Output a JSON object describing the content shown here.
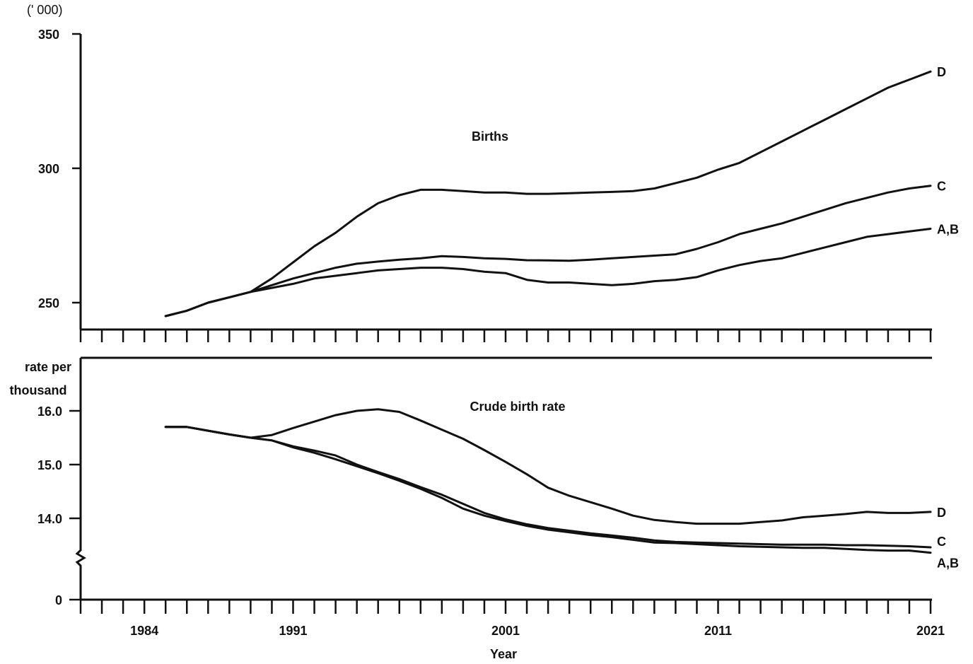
{
  "chart_data": [
    {
      "type": "line",
      "title": "Births",
      "ylabel": "(' 000)",
      "xlim": [
        1981,
        2021
      ],
      "ylim": [
        240,
        350
      ],
      "yticks": [
        250,
        300,
        350
      ],
      "series": [
        {
          "name": "D",
          "x": [
            1985,
            1986,
            1987,
            1988,
            1989,
            1990,
            1991,
            1992,
            1993,
            1994,
            1995,
            1996,
            1997,
            1998,
            1999,
            2000,
            2001,
            2002,
            2003,
            2004,
            2005,
            2006,
            2007,
            2008,
            2009,
            2010,
            2011,
            2012,
            2013,
            2014,
            2015,
            2016,
            2017,
            2018,
            2019,
            2020,
            2021
          ],
          "values": [
            245,
            247,
            250,
            252,
            254,
            259,
            265,
            271,
            276,
            282,
            287,
            290,
            292,
            292,
            291.5,
            291,
            291,
            290.5,
            290.5,
            290.7,
            291,
            291.2,
            291.5,
            292.5,
            294.5,
            296.5,
            299.5,
            302,
            306,
            310,
            314,
            318,
            322,
            326,
            330,
            333,
            336
          ]
        },
        {
          "name": "C",
          "x": [
            1985,
            1986,
            1987,
            1988,
            1989,
            1990,
            1991,
            1992,
            1993,
            1994,
            1995,
            1996,
            1997,
            1998,
            1999,
            2000,
            2001,
            2002,
            2003,
            2004,
            2005,
            2006,
            2007,
            2008,
            2009,
            2010,
            2011,
            2012,
            2013,
            2014,
            2015,
            2016,
            2017,
            2018,
            2019,
            2020,
            2021
          ],
          "values": [
            245,
            247,
            250,
            252,
            254,
            256.5,
            259,
            261,
            263,
            264.5,
            265.3,
            266,
            266.5,
            267.3,
            267,
            266.5,
            266.3,
            265.8,
            265.7,
            265.6,
            266,
            266.5,
            267,
            267.5,
            268,
            270,
            272.5,
            275.5,
            277.5,
            279.5,
            282,
            284.5,
            287,
            289,
            291,
            292.5,
            293.5
          ]
        },
        {
          "name": "A,B",
          "x": [
            1985,
            1986,
            1987,
            1988,
            1989,
            1990,
            1991,
            1992,
            1993,
            1994,
            1995,
            1996,
            1997,
            1998,
            1999,
            2000,
            2001,
            2002,
            2003,
            2004,
            2005,
            2006,
            2007,
            2008,
            2009,
            2010,
            2011,
            2012,
            2013,
            2014,
            2015,
            2016,
            2017,
            2018,
            2019,
            2020,
            2021
          ],
          "values": [
            245,
            247,
            250,
            252,
            254,
            255.5,
            257,
            259,
            260,
            261,
            262,
            262.5,
            263,
            263,
            262.5,
            261.5,
            261,
            258.5,
            257.5,
            257.5,
            257,
            256.5,
            257,
            258,
            258.5,
            259.5,
            262,
            264,
            265.5,
            266.5,
            268.5,
            270.5,
            272.5,
            274.5,
            275.5,
            276.5,
            277.5
          ]
        }
      ]
    },
    {
      "type": "line",
      "title": "Crude birth rate",
      "ylabel_lines": [
        "rate per",
        "thousand"
      ],
      "xlabel": "Year",
      "xlim": [
        1981,
        2021
      ],
      "ylim": [
        0,
        16.6
      ],
      "y_axis_break": true,
      "yticks": [
        0,
        14.0,
        15.0,
        16.0
      ],
      "ytick_labels": [
        "0",
        "14.0",
        "15.0",
        "16.0"
      ],
      "xtick_labels": [
        "1984",
        "1991",
        "2001",
        "2011",
        "2021"
      ],
      "series": [
        {
          "name": "D",
          "x": [
            1985,
            1986,
            1987,
            1988,
            1989,
            1990,
            1991,
            1992,
            1993,
            1994,
            1995,
            1996,
            1997,
            1998,
            1999,
            2000,
            2001,
            2002,
            2003,
            2004,
            2005,
            2006,
            2007,
            2008,
            2009,
            2010,
            2011,
            2012,
            2013,
            2014,
            2015,
            2016,
            2017,
            2018,
            2019,
            2020,
            2021
          ],
          "values": [
            15.7,
            15.7,
            15.63,
            15.56,
            15.5,
            15.55,
            15.68,
            15.8,
            15.92,
            16.0,
            16.03,
            15.98,
            15.82,
            15.65,
            15.48,
            15.27,
            15.05,
            14.82,
            14.57,
            14.42,
            14.3,
            14.18,
            14.05,
            13.97,
            13.93,
            13.9,
            13.9,
            13.9,
            13.93,
            13.96,
            14.02,
            14.05,
            14.08,
            14.12,
            14.1,
            14.1,
            14.12
          ]
        },
        {
          "name": "C",
          "x": [
            1985,
            1986,
            1987,
            1988,
            1989,
            1990,
            1991,
            1992,
            1993,
            1994,
            1995,
            1996,
            1997,
            1998,
            1999,
            2000,
            2001,
            2002,
            2003,
            2004,
            2005,
            2006,
            2007,
            2008,
            2009,
            2010,
            2011,
            2012,
            2013,
            2014,
            2015,
            2016,
            2017,
            2018,
            2019,
            2020,
            2021
          ],
          "values": [
            15.7,
            15.7,
            15.63,
            15.56,
            15.5,
            15.45,
            15.34,
            15.26,
            15.17,
            15.0,
            14.86,
            14.73,
            14.58,
            14.44,
            14.27,
            14.1,
            13.98,
            13.89,
            13.82,
            13.77,
            13.72,
            13.68,
            13.64,
            13.59,
            13.56,
            13.55,
            13.54,
            13.53,
            13.52,
            13.51,
            13.51,
            13.51,
            13.5,
            13.5,
            13.49,
            13.48,
            13.46
          ]
        },
        {
          "name": "A,B",
          "x": [
            1985,
            1986,
            1987,
            1988,
            1989,
            1990,
            1991,
            1992,
            1993,
            1994,
            1995,
            1996,
            1997,
            1998,
            1999,
            2000,
            2001,
            2002,
            2003,
            2004,
            2005,
            2006,
            2007,
            2008,
            2009,
            2010,
            2011,
            2012,
            2013,
            2014,
            2015,
            2016,
            2017,
            2018,
            2019,
            2020,
            2021
          ],
          "values": [
            15.7,
            15.7,
            15.63,
            15.56,
            15.5,
            15.45,
            15.32,
            15.22,
            15.1,
            14.97,
            14.84,
            14.7,
            14.55,
            14.38,
            14.18,
            14.05,
            13.95,
            13.86,
            13.79,
            13.74,
            13.69,
            13.65,
            13.6,
            13.55,
            13.54,
            13.52,
            13.5,
            13.48,
            13.47,
            13.46,
            13.45,
            13.45,
            13.43,
            13.41,
            13.4,
            13.4,
            13.36
          ]
        }
      ]
    }
  ]
}
